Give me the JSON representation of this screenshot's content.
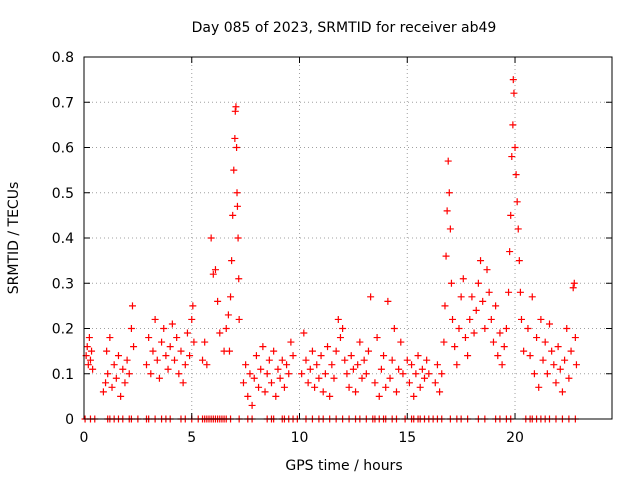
{
  "chart_data": {
    "type": "scatter",
    "title": "Day 085 of 2023, SRMTID for receiver ab49",
    "xlabel": "GPS time / hours",
    "ylabel": "SRMTID / TECUs",
    "xlim": [
      0,
      24.5
    ],
    "ylim": [
      0,
      0.8
    ],
    "x_ticks": [
      0,
      5,
      10,
      15,
      20
    ],
    "y_ticks": [
      0,
      0.1,
      0.2,
      0.3,
      0.4,
      0.5,
      0.6,
      0.7,
      0.8
    ],
    "x_tick_labels": [
      "0",
      "5",
      "10",
      "15",
      "20"
    ],
    "y_tick_labels": [
      "0",
      "0.1",
      "0.2",
      "0.3",
      "0.4",
      "0.5",
      "0.6",
      "0.7",
      "0.8"
    ],
    "grid": true,
    "marker": "+",
    "marker_color": "#ff0000",
    "series": [
      {
        "name": "SRMTID",
        "points": [
          [
            0.1,
            0.14
          ],
          [
            0.15,
            0.16
          ],
          [
            0.2,
            0.12
          ],
          [
            0.25,
            0.18
          ],
          [
            0.3,
            0.13
          ],
          [
            0.35,
            0.15
          ],
          [
            0.4,
            0.11
          ],
          [
            0.9,
            0.06
          ],
          [
            1.0,
            0.08
          ],
          [
            1.05,
            0.15
          ],
          [
            1.1,
            0.1
          ],
          [
            1.2,
            0.18
          ],
          [
            1.3,
            0.07
          ],
          [
            1.4,
            0.12
          ],
          [
            1.5,
            0.09
          ],
          [
            1.6,
            0.14
          ],
          [
            1.7,
            0.05
          ],
          [
            1.8,
            0.11
          ],
          [
            1.9,
            0.08
          ],
          [
            2.0,
            0.13
          ],
          [
            2.1,
            0.1
          ],
          [
            2.2,
            0.2
          ],
          [
            2.25,
            0.25
          ],
          [
            2.3,
            0.16
          ],
          [
            2.9,
            0.12
          ],
          [
            3.0,
            0.18
          ],
          [
            3.1,
            0.1
          ],
          [
            3.2,
            0.15
          ],
          [
            3.3,
            0.22
          ],
          [
            3.4,
            0.13
          ],
          [
            3.5,
            0.09
          ],
          [
            3.6,
            0.17
          ],
          [
            3.7,
            0.2
          ],
          [
            3.8,
            0.14
          ],
          [
            3.9,
            0.11
          ],
          [
            4.0,
            0.16
          ],
          [
            4.1,
            0.21
          ],
          [
            4.2,
            0.13
          ],
          [
            4.3,
            0.18
          ],
          [
            4.4,
            0.1
          ],
          [
            4.5,
            0.15
          ],
          [
            4.6,
            0.08
          ],
          [
            4.7,
            0.12
          ],
          [
            4.8,
            0.19
          ],
          [
            4.9,
            0.14
          ],
          [
            5.0,
            0.22
          ],
          [
            5.05,
            0.25
          ],
          [
            5.1,
            0.17
          ],
          [
            5.5,
            0.13
          ],
          [
            5.6,
            0.17
          ],
          [
            5.7,
            0.12
          ],
          [
            5.9,
            0.4
          ],
          [
            6.0,
            0.32
          ],
          [
            6.1,
            0.33
          ],
          [
            6.2,
            0.26
          ],
          [
            6.3,
            0.19
          ],
          [
            6.5,
            0.15
          ],
          [
            6.6,
            0.2
          ],
          [
            6.7,
            0.23
          ],
          [
            6.75,
            0.15
          ],
          [
            6.8,
            0.27
          ],
          [
            6.85,
            0.35
          ],
          [
            6.9,
            0.45
          ],
          [
            6.95,
            0.55
          ],
          [
            7.0,
            0.62
          ],
          [
            7.02,
            0.68
          ],
          [
            7.05,
            0.69
          ],
          [
            7.08,
            0.6
          ],
          [
            7.1,
            0.5
          ],
          [
            7.12,
            0.47
          ],
          [
            7.15,
            0.4
          ],
          [
            7.18,
            0.31
          ],
          [
            7.2,
            0.22
          ],
          [
            7.4,
            0.08
          ],
          [
            7.5,
            0.12
          ],
          [
            7.6,
            0.05
          ],
          [
            7.7,
            0.1
          ],
          [
            7.8,
            0.03
          ],
          [
            7.9,
            0.09
          ],
          [
            8.0,
            0.14
          ],
          [
            8.1,
            0.07
          ],
          [
            8.2,
            0.11
          ],
          [
            8.3,
            0.16
          ],
          [
            8.4,
            0.06
          ],
          [
            8.5,
            0.1
          ],
          [
            8.6,
            0.13
          ],
          [
            8.7,
            0.08
          ],
          [
            8.8,
            0.15
          ],
          [
            8.9,
            0.05
          ],
          [
            9.0,
            0.11
          ],
          [
            9.1,
            0.09
          ],
          [
            9.2,
            0.13
          ],
          [
            9.3,
            0.07
          ],
          [
            9.4,
            0.12
          ],
          [
            9.5,
            0.1
          ],
          [
            9.6,
            0.17
          ],
          [
            9.7,
            0.14
          ],
          [
            10.1,
            0.1
          ],
          [
            10.2,
            0.19
          ],
          [
            10.3,
            0.13
          ],
          [
            10.4,
            0.08
          ],
          [
            10.5,
            0.11
          ],
          [
            10.6,
            0.15
          ],
          [
            10.7,
            0.07
          ],
          [
            10.8,
            0.12
          ],
          [
            10.9,
            0.09
          ],
          [
            11.0,
            0.14
          ],
          [
            11.1,
            0.06
          ],
          [
            11.2,
            0.1
          ],
          [
            11.3,
            0.16
          ],
          [
            11.4,
            0.05
          ],
          [
            11.5,
            0.12
          ],
          [
            11.6,
            0.09
          ],
          [
            11.7,
            0.15
          ],
          [
            11.8,
            0.22
          ],
          [
            11.9,
            0.18
          ],
          [
            12.0,
            0.2
          ],
          [
            12.1,
            0.13
          ],
          [
            12.2,
            0.1
          ],
          [
            12.3,
            0.07
          ],
          [
            12.4,
            0.14
          ],
          [
            12.5,
            0.11
          ],
          [
            12.6,
            0.06
          ],
          [
            12.7,
            0.12
          ],
          [
            12.8,
            0.17
          ],
          [
            12.9,
            0.09
          ],
          [
            13.0,
            0.13
          ],
          [
            13.1,
            0.1
          ],
          [
            13.2,
            0.15
          ],
          [
            13.3,
            0.27
          ],
          [
            13.5,
            0.08
          ],
          [
            13.6,
            0.18
          ],
          [
            13.7,
            0.05
          ],
          [
            13.8,
            0.11
          ],
          [
            13.9,
            0.14
          ],
          [
            14.0,
            0.07
          ],
          [
            14.1,
            0.26
          ],
          [
            14.2,
            0.09
          ],
          [
            14.3,
            0.13
          ],
          [
            14.4,
            0.2
          ],
          [
            14.5,
            0.06
          ],
          [
            14.6,
            0.11
          ],
          [
            14.7,
            0.17
          ],
          [
            14.8,
            0.1
          ],
          [
            15.0,
            0.13
          ],
          [
            15.1,
            0.08
          ],
          [
            15.2,
            0.12
          ],
          [
            15.3,
            0.05
          ],
          [
            15.4,
            0.1
          ],
          [
            15.5,
            0.14
          ],
          [
            15.6,
            0.07
          ],
          [
            15.7,
            0.11
          ],
          [
            15.8,
            0.09
          ],
          [
            15.9,
            0.13
          ],
          [
            16.0,
            0.1
          ],
          [
            16.3,
            0.08
          ],
          [
            16.4,
            0.12
          ],
          [
            16.5,
            0.06
          ],
          [
            16.6,
            0.1
          ],
          [
            16.7,
            0.17
          ],
          [
            16.75,
            0.25
          ],
          [
            16.8,
            0.36
          ],
          [
            16.85,
            0.46
          ],
          [
            16.9,
            0.57
          ],
          [
            16.95,
            0.5
          ],
          [
            17.0,
            0.42
          ],
          [
            17.05,
            0.3
          ],
          [
            17.1,
            0.22
          ],
          [
            17.2,
            0.16
          ],
          [
            17.3,
            0.12
          ],
          [
            17.4,
            0.2
          ],
          [
            17.5,
            0.27
          ],
          [
            17.6,
            0.31
          ],
          [
            17.7,
            0.18
          ],
          [
            17.8,
            0.14
          ],
          [
            17.9,
            0.22
          ],
          [
            18.0,
            0.27
          ],
          [
            18.1,
            0.19
          ],
          [
            18.2,
            0.24
          ],
          [
            18.3,
            0.3
          ],
          [
            18.4,
            0.35
          ],
          [
            18.5,
            0.26
          ],
          [
            18.6,
            0.2
          ],
          [
            18.7,
            0.33
          ],
          [
            18.8,
            0.28
          ],
          [
            18.9,
            0.22
          ],
          [
            19.0,
            0.17
          ],
          [
            19.1,
            0.25
          ],
          [
            19.2,
            0.14
          ],
          [
            19.3,
            0.19
          ],
          [
            19.4,
            0.12
          ],
          [
            19.5,
            0.16
          ],
          [
            19.6,
            0.2
          ],
          [
            19.7,
            0.28
          ],
          [
            19.75,
            0.37
          ],
          [
            19.8,
            0.45
          ],
          [
            19.85,
            0.58
          ],
          [
            19.9,
            0.65
          ],
          [
            19.92,
            0.75
          ],
          [
            19.95,
            0.72
          ],
          [
            20.0,
            0.6
          ],
          [
            20.05,
            0.54
          ],
          [
            20.1,
            0.48
          ],
          [
            20.15,
            0.42
          ],
          [
            20.2,
            0.35
          ],
          [
            20.25,
            0.28
          ],
          [
            20.3,
            0.22
          ],
          [
            20.4,
            0.15
          ],
          [
            20.6,
            0.2
          ],
          [
            20.7,
            0.14
          ],
          [
            20.8,
            0.27
          ],
          [
            20.9,
            0.1
          ],
          [
            21.0,
            0.18
          ],
          [
            21.1,
            0.07
          ],
          [
            21.2,
            0.22
          ],
          [
            21.3,
            0.13
          ],
          [
            21.4,
            0.17
          ],
          [
            21.5,
            0.1
          ],
          [
            21.6,
            0.21
          ],
          [
            21.7,
            0.15
          ],
          [
            21.8,
            0.12
          ],
          [
            21.9,
            0.08
          ],
          [
            22.0,
            0.16
          ],
          [
            22.1,
            0.11
          ],
          [
            22.2,
            0.06
          ],
          [
            22.3,
            0.13
          ],
          [
            22.4,
            0.2
          ],
          [
            22.5,
            0.09
          ],
          [
            22.6,
            0.15
          ],
          [
            22.7,
            0.29
          ],
          [
            22.75,
            0.3
          ],
          [
            22.8,
            0.18
          ],
          [
            22.85,
            0.12
          ]
        ],
        "zero_points": [
          0.05,
          0.3,
          0.5,
          1.1,
          1.2,
          1.4,
          1.6,
          1.8,
          2.1,
          2.2,
          2.5,
          2.9,
          3.0,
          3.3,
          3.6,
          3.8,
          4.0,
          4.5,
          4.7,
          5.0,
          5.3,
          5.5,
          5.6,
          5.7,
          5.8,
          5.9,
          6.0,
          6.1,
          6.2,
          6.3,
          6.4,
          6.5,
          6.6,
          6.8,
          7.2,
          7.6,
          7.8,
          8.5,
          8.7,
          8.8,
          9.2,
          9.3,
          9.5,
          9.7,
          9.9,
          10.3,
          10.6,
          10.9,
          11.1,
          11.4,
          11.7,
          12.0,
          12.3,
          12.6,
          12.8,
          13.1,
          13.4,
          13.5,
          13.7,
          13.9,
          14.0,
          14.3,
          14.5,
          14.9,
          15.2,
          15.3,
          15.5,
          15.6,
          15.8,
          16.0,
          16.2,
          16.4,
          16.6,
          17.0,
          17.3,
          17.5,
          17.8,
          18.3,
          18.6,
          19.1,
          19.3,
          19.6,
          19.8,
          20.5,
          20.7,
          20.8,
          21.0,
          21.2,
          21.4,
          21.6,
          21.9,
          22.2,
          22.5,
          22.8
        ]
      }
    ]
  }
}
